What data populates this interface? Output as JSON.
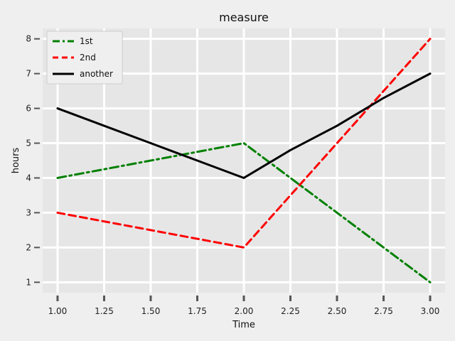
{
  "chart_data": {
    "type": "line",
    "title": "measure",
    "xlabel": "Time",
    "ylabel": "hours",
    "xlim": [
      0.92,
      3.08
    ],
    "ylim": [
      0.7,
      8.3
    ],
    "xticks": [
      "1.00",
      "1.25",
      "1.50",
      "1.75",
      "2.00",
      "2.25",
      "2.50",
      "2.75",
      "3.00"
    ],
    "yticks": [
      "1",
      "2",
      "3",
      "4",
      "5",
      "6",
      "7",
      "8"
    ],
    "grid": true,
    "legend_position": "top-left",
    "series": [
      {
        "name": "1st",
        "color": "#008000",
        "dash": "dashdot",
        "x": [
          1,
          2,
          3
        ],
        "y": [
          4,
          5,
          1
        ]
      },
      {
        "name": "2nd",
        "color": "#ff0000",
        "dash": "dashed",
        "x": [
          1,
          2,
          3
        ],
        "y": [
          3,
          2,
          8
        ]
      },
      {
        "name": "another",
        "color": "#000000",
        "dash": "solid",
        "x": [
          1,
          1.25,
          1.5,
          1.75,
          2,
          2.25,
          2.5,
          2.75,
          3
        ],
        "y": [
          6,
          5.5,
          5.0,
          4.5,
          4,
          4.8,
          5.5,
          6.3,
          7
        ]
      }
    ]
  }
}
